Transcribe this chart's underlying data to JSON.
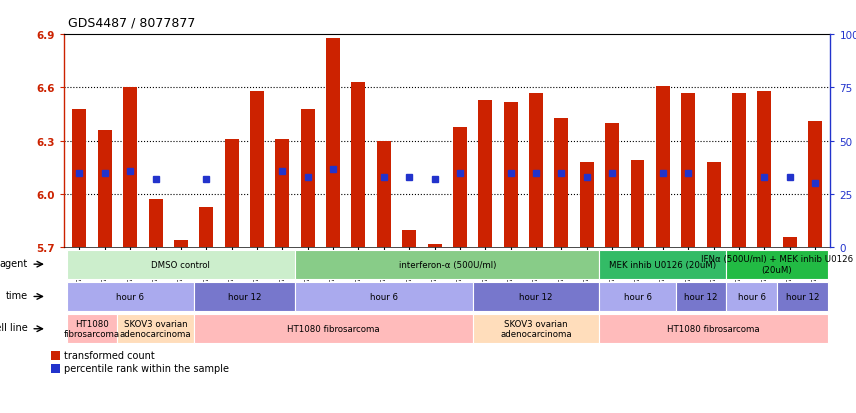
{
  "title": "GDS4487 / 8077877",
  "samples": [
    "GSM768611",
    "GSM768612",
    "GSM768613",
    "GSM768635",
    "GSM768636",
    "GSM768637",
    "GSM768614",
    "GSM768615",
    "GSM768616",
    "GSM768617",
    "GSM768618",
    "GSM768619",
    "GSM768638",
    "GSM768639",
    "GSM768640",
    "GSM768620",
    "GSM768621",
    "GSM768622",
    "GSM768623",
    "GSM768624",
    "GSM768625",
    "GSM768626",
    "GSM768627",
    "GSM768628",
    "GSM768629",
    "GSM768630",
    "GSM768631",
    "GSM768632",
    "GSM768633",
    "GSM768634"
  ],
  "bar_values": [
    6.48,
    6.36,
    6.6,
    5.97,
    5.74,
    5.93,
    6.31,
    6.58,
    6.31,
    6.48,
    6.88,
    6.63,
    6.3,
    5.8,
    5.72,
    6.38,
    6.53,
    6.52,
    6.57,
    6.43,
    6.18,
    6.4,
    6.19,
    6.61,
    6.57,
    6.18,
    6.57,
    6.58,
    5.76,
    6.41
  ],
  "percentile_values": [
    35,
    35,
    36,
    32,
    null,
    32,
    null,
    null,
    36,
    33,
    37,
    null,
    33,
    33,
    32,
    35,
    null,
    35,
    35,
    35,
    33,
    35,
    null,
    35,
    35,
    null,
    null,
    33,
    33,
    30
  ],
  "ymin": 5.7,
  "ymax": 6.9,
  "yticks_left": [
    5.7,
    6.0,
    6.3,
    6.6,
    6.9
  ],
  "yticks_right": [
    0,
    25,
    50,
    75,
    100
  ],
  "bar_color": "#cc2200",
  "blue_color": "#2233cc",
  "agent_groups": [
    {
      "label": "DMSO control",
      "start": 0,
      "end": 9,
      "color": "#cceecc"
    },
    {
      "label": "interferon-α (500U/ml)",
      "start": 9,
      "end": 21,
      "color": "#88cc88"
    },
    {
      "label": "MEK inhib U0126 (20uM)",
      "start": 21,
      "end": 26,
      "color": "#33bb66"
    },
    {
      "label": "IFNα (500U/ml) + MEK inhib U0126\n(20uM)",
      "start": 26,
      "end": 30,
      "color": "#22bb44"
    }
  ],
  "time_groups": [
    {
      "label": "hour 6",
      "start": 0,
      "end": 5,
      "color": "#aaaaee"
    },
    {
      "label": "hour 12",
      "start": 5,
      "end": 9,
      "color": "#7777cc"
    },
    {
      "label": "hour 6",
      "start": 9,
      "end": 16,
      "color": "#aaaaee"
    },
    {
      "label": "hour 12",
      "start": 16,
      "end": 21,
      "color": "#7777cc"
    },
    {
      "label": "hour 6",
      "start": 21,
      "end": 24,
      "color": "#aaaaee"
    },
    {
      "label": "hour 12",
      "start": 24,
      "end": 26,
      "color": "#7777cc"
    },
    {
      "label": "hour 6",
      "start": 26,
      "end": 28,
      "color": "#aaaaee"
    },
    {
      "label": "hour 12",
      "start": 28,
      "end": 30,
      "color": "#7777cc"
    }
  ],
  "cell_groups": [
    {
      "label": "HT1080\nfibrosarcoma",
      "start": 0,
      "end": 2,
      "color": "#ffbbbb"
    },
    {
      "label": "SKOV3 ovarian\nadenocarcinoma",
      "start": 2,
      "end": 5,
      "color": "#ffddbb"
    },
    {
      "label": "HT1080 fibrosarcoma",
      "start": 5,
      "end": 16,
      "color": "#ffbbbb"
    },
    {
      "label": "SKOV3 ovarian\nadenocarcinoma",
      "start": 16,
      "end": 21,
      "color": "#ffddbb"
    },
    {
      "label": "HT1080 fibrosarcoma",
      "start": 21,
      "end": 30,
      "color": "#ffbbbb"
    }
  ]
}
